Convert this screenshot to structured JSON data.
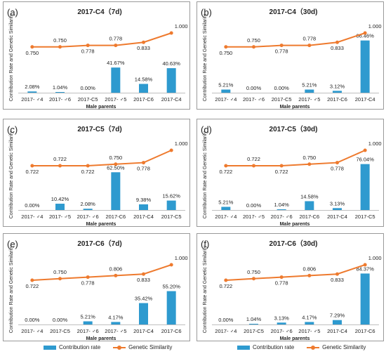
{
  "colors": {
    "bar": "#2E9ACF",
    "line": "#EE7A2E",
    "frame": "#9a9a9a",
    "text": "#222222",
    "axis": "#bfbfbf"
  },
  "legend": {
    "bar_label": "Contribution rate",
    "line_label": "Genetic Similarity"
  },
  "chart_data": [
    {
      "type": "bar+line",
      "panel_label": "(a)",
      "title": "2017-C4（7d)",
      "xlabel": "Male parents",
      "ylabel": "Contribution Rate and Genetic Similarity",
      "categories": [
        "2017- ♂4",
        "2017- ♂6",
        "2017-C5",
        "2017- ♂5",
        "2017-C6",
        "2017-C4"
      ],
      "series": [
        {
          "kind": "bar",
          "values": [
            2.08,
            1.04,
            0.0,
            41.67,
            14.58,
            40.63
          ],
          "labels": [
            "2.08%",
            "1.04%",
            "0.00%",
            "41.67%",
            "14.58%",
            "40.63%"
          ]
        },
        {
          "kind": "line",
          "values": [
            0.75,
            0.75,
            0.778,
            0.778,
            0.833,
            1.0
          ],
          "labels": [
            "0.750",
            "0.750",
            "0.778",
            "0.778",
            "0.833",
            "1.000"
          ]
        }
      ]
    },
    {
      "type": "bar+line",
      "panel_label": "(b)",
      "title": "2017-C4（30d)",
      "xlabel": "Male parents",
      "ylabel": "Contribution Rate and Genetic Similarity",
      "categories": [
        "2017- ♂4",
        "2017- ♂6",
        "2017-C5",
        "2017- ♂5",
        "2017-C6",
        "2017-C4"
      ],
      "series": [
        {
          "kind": "bar",
          "values": [
            5.21,
            0.0,
            0.0,
            5.21,
            3.12,
            86.46
          ],
          "labels": [
            "5.21%",
            "0.00%",
            "0.00%",
            "5.21%",
            "3.12%",
            "86.46%"
          ]
        },
        {
          "kind": "line",
          "values": [
            0.75,
            0.75,
            0.778,
            0.778,
            0.833,
            1.0
          ],
          "labels": [
            "0.750",
            "0.750",
            "0.778",
            "0.778",
            "0.833",
            "1.000"
          ]
        }
      ]
    },
    {
      "type": "bar+line",
      "panel_label": "(c)",
      "title": "2017-C5（7d)",
      "xlabel": "Male parents",
      "ylabel": "Contribution Rate and Genetic Similarity",
      "categories": [
        "2017- ♂4",
        "2017- ♂5",
        "2017- ♂6",
        "2017-C6",
        "2017-C4",
        "2017-C5"
      ],
      "series": [
        {
          "kind": "bar",
          "values": [
            0.0,
            10.42,
            2.08,
            62.5,
            9.38,
            15.62
          ],
          "labels": [
            "0.00%",
            "10.42%",
            "2.08%",
            "62.50%",
            "9.38%",
            "15.62%"
          ]
        },
        {
          "kind": "line",
          "values": [
            0.722,
            0.722,
            0.722,
            0.75,
            0.778,
            1.0
          ],
          "labels": [
            "0.722",
            "0.722",
            "0.722",
            "0.750",
            "0.778",
            "1.000"
          ]
        }
      ]
    },
    {
      "type": "bar+line",
      "panel_label": "(d)",
      "title": "2017-C5（30d)",
      "xlabel": "Male parents",
      "ylabel": "Contribution Rate and Genetic Similarity",
      "categories": [
        "2017- ♂4",
        "2017- ♂5",
        "2017- ♂6",
        "2017-C6",
        "2017-C4",
        "2017-C5"
      ],
      "series": [
        {
          "kind": "bar",
          "values": [
            5.21,
            0.0,
            1.04,
            14.58,
            3.13,
            76.04
          ],
          "labels": [
            "5.21%",
            "0.00%",
            "1.04%",
            "14.58%",
            "3.13%",
            "76.04%"
          ]
        },
        {
          "kind": "line",
          "values": [
            0.722,
            0.722,
            0.722,
            0.75,
            0.778,
            1.0
          ],
          "labels": [
            "0.722",
            "0.722",
            "0.722",
            "0.750",
            "0.778",
            "1.000"
          ]
        }
      ]
    },
    {
      "type": "bar+line",
      "panel_label": "(e)",
      "title": "2017-C6（7d)",
      "xlabel": "Male parents",
      "ylabel": "Contribution Rate and Genetic Similarity",
      "categories": [
        "2017- ♂4",
        "2017-C5",
        "2017- ♂6",
        "2017- ♂5",
        "2017-C4",
        "2017-C6"
      ],
      "series": [
        {
          "kind": "bar",
          "values": [
            0.0,
            0.0,
            5.21,
            4.17,
            35.42,
            55.2
          ],
          "labels": [
            "0.00%",
            "0.00%",
            "5.21%",
            "4.17%",
            "35.42%",
            "55.20%"
          ]
        },
        {
          "kind": "line",
          "values": [
            0.722,
            0.75,
            0.778,
            0.806,
            0.833,
            1.0
          ],
          "labels": [
            "0.722",
            "0.750",
            "0.778",
            "0.806",
            "0.833",
            "1.000"
          ]
        }
      ]
    },
    {
      "type": "bar+line",
      "panel_label": "(f)",
      "title": "2017-C6（30d)",
      "xlabel": "Male parents",
      "ylabel": "Contribution Rate and Genetic Similarity",
      "categories": [
        "2017- ♂4",
        "2017-C5",
        "2017- ♂6",
        "2017- ♂5",
        "2017-C4",
        "2017-C6"
      ],
      "series": [
        {
          "kind": "bar",
          "values": [
            0.0,
            1.04,
            3.13,
            4.17,
            7.29,
            84.37
          ],
          "labels": [
            "0.00%",
            "1.04%",
            "3.13%",
            "4.17%",
            "7.29%",
            "84.37%"
          ]
        },
        {
          "kind": "line",
          "values": [
            0.722,
            0.75,
            0.778,
            0.806,
            0.833,
            1.0
          ],
          "labels": [
            "0.722",
            "0.750",
            "0.778",
            "0.806",
            "0.833",
            "1.000"
          ]
        }
      ]
    }
  ]
}
